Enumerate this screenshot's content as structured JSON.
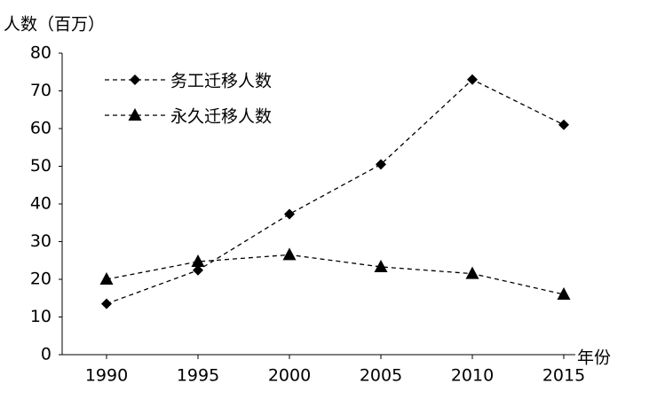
{
  "chart_data": {
    "type": "line",
    "y_label": "人数（百万）",
    "x_label": "年份",
    "categories": [
      "1990",
      "1995",
      "2000",
      "2005",
      "2010",
      "2015"
    ],
    "series": [
      {
        "name": "务工迁移人数",
        "color": "#000000",
        "marker": "diamond",
        "values": [
          13.5,
          22.4,
          37.3,
          50.5,
          73,
          61
        ]
      },
      {
        "name": "永久迁移人数",
        "color": "#000000",
        "marker": "triangle",
        "values": [
          20,
          24.7,
          26.5,
          23.3,
          21.5,
          16
        ]
      }
    ],
    "ylim": [
      0,
      80
    ],
    "yticks": [
      0,
      10,
      20,
      30,
      40,
      50,
      60,
      70,
      80
    ],
    "grid": false,
    "legend": "top-left"
  }
}
